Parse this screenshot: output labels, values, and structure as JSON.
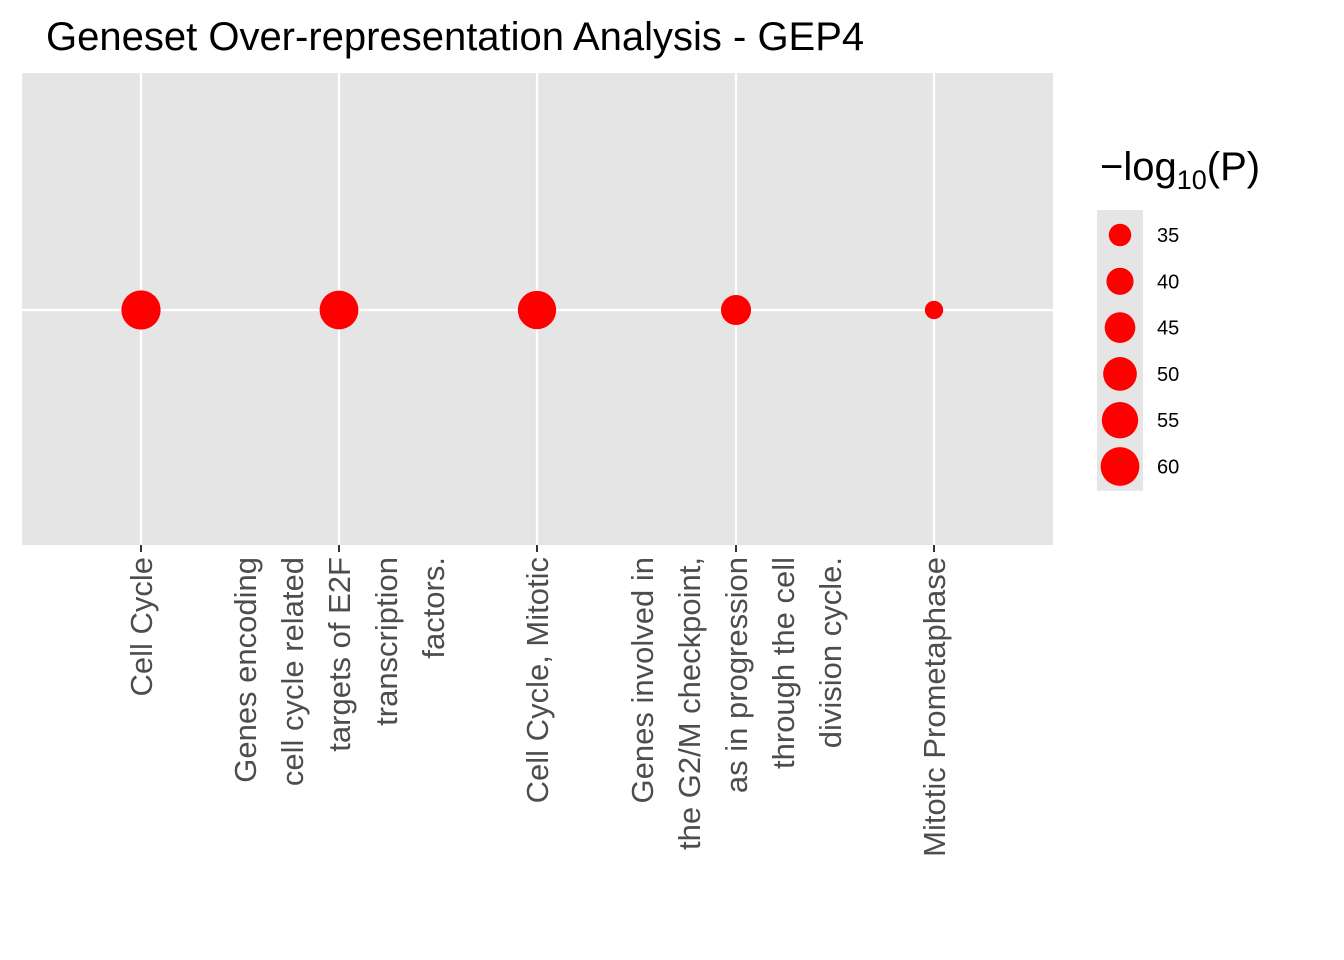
{
  "chart_data": {
    "type": "scatter",
    "title": "Geneset Over-representation Analysis - GEP4",
    "xlabel": "",
    "ylabel": "",
    "categories": [
      [
        "Cell Cycle"
      ],
      [
        "Genes encoding",
        "cell cycle related",
        "targets of E2F",
        "transcription",
        "factors."
      ],
      [
        "Cell Cycle, Mitotic"
      ],
      [
        "Genes involved in",
        "the G2/M checkpoint,",
        "as in progression",
        "through the cell",
        "division cycle."
      ],
      [
        "Mitotic Prometaphase"
      ]
    ],
    "series": [
      {
        "size_values": [
          61,
          60,
          59,
          44,
          32
        ]
      }
    ],
    "point_color": "#ff0000",
    "panel_background": "#e5e5e5",
    "grid": true,
    "legend": {
      "title_prefix": "−log",
      "title_subscript": "10",
      "title_suffix": "(P)",
      "placement": "right",
      "breaks": [
        35,
        40,
        45,
        50,
        55,
        60
      ]
    }
  }
}
